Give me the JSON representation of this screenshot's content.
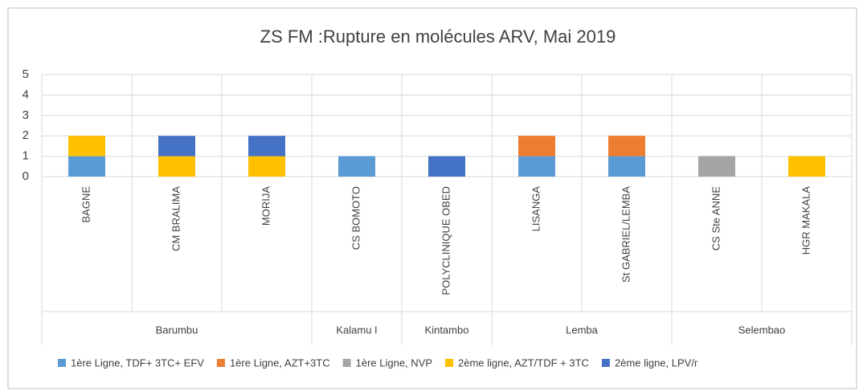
{
  "chart_data": {
    "type": "stacked_bar",
    "title": "ZS FM :Rupture en molécules ARV, Mai 2019",
    "categories": [
      "BAGNE",
      "CM BRALIMA",
      "MORIJA",
      "CS BOMOTO",
      "POLYCLINIQUE OBED",
      "LISANGA",
      "St GABRIEL/LEMBA",
      "CS Ste ANNE",
      "HGR MAKALA"
    ],
    "category_groups": [
      "Barumbu",
      "Barumbu",
      "Barumbu",
      "Kalamu I",
      "Kintambo",
      "Lemba",
      "Lemba",
      "Selembao",
      "Selembao"
    ],
    "series": [
      {
        "name": "1ère Ligne, TDF+ 3TC+ EFV",
        "color": "#5b9bd5",
        "values": [
          1,
          0,
          0,
          1,
          0,
          1,
          1,
          0,
          0
        ]
      },
      {
        "name": "1ère Ligne, AZT+3TC",
        "color": "#ed7d31",
        "values": [
          0,
          0,
          0,
          0,
          0,
          1,
          1,
          0,
          0
        ]
      },
      {
        "name": "1ère Ligne, NVP",
        "color": "#a5a5a5",
        "values": [
          0,
          0,
          0,
          0,
          0,
          0,
          0,
          1,
          0
        ]
      },
      {
        "name": "2ème ligne, AZT/TDF + 3TC",
        "color": "#ffc000",
        "values": [
          1,
          1,
          1,
          0,
          0,
          0,
          0,
          0,
          1
        ]
      },
      {
        "name": "2ème ligne, LPV/r",
        "color": "#4472c4",
        "values": [
          0,
          1,
          1,
          0,
          1,
          0,
          0,
          0,
          0
        ]
      }
    ],
    "ylim": [
      0,
      5
    ],
    "yticks": [
      0,
      1,
      2,
      3,
      4,
      5
    ],
    "grid": true,
    "legend": "bottom"
  }
}
